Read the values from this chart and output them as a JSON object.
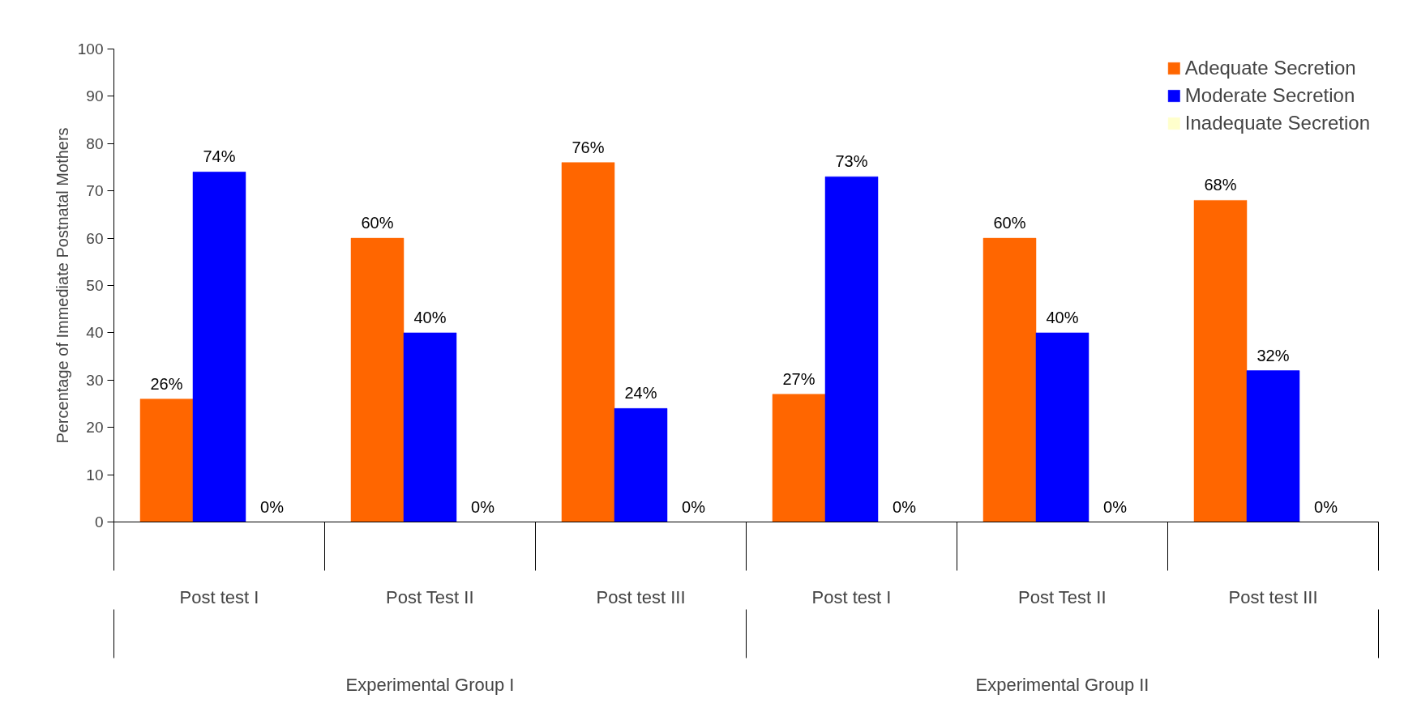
{
  "chart_data": {
    "type": "bar",
    "ylabel": "Percentage of Immediate Postnatal Mothers",
    "categories": [
      "Post test I",
      "Post Test II",
      "Post test III",
      "Post test I",
      "Post Test II",
      "Post test III"
    ],
    "annotations": [
      "Experimental Group I",
      "Experimental Group II"
    ],
    "series": [
      {
        "name": "Adequate Secretion",
        "color": "#ff6600",
        "values": [
          26,
          60,
          76,
          27,
          60,
          68
        ],
        "value_labels": [
          "26%",
          "60%",
          "76%",
          "27%",
          "60%",
          "68%"
        ]
      },
      {
        "name": "Moderate Secretion",
        "color": "#0000ff",
        "values": [
          74,
          40,
          24,
          73,
          40,
          32
        ],
        "value_labels": [
          "74%",
          "40%",
          "24%",
          "73%",
          "40%",
          "32%"
        ]
      },
      {
        "name": "Inadequate Secretion",
        "color": "#ffffcc",
        "values": [
          0,
          0,
          0,
          0,
          0,
          0
        ],
        "value_labels": [
          "0%",
          "0%",
          "0%",
          "0%",
          "0%",
          "0%"
        ]
      }
    ],
    "ylim": [
      0,
      100
    ],
    "yticks": [
      0,
      10,
      20,
      30,
      40,
      50,
      60,
      70,
      80,
      90,
      100
    ],
    "grid": false,
    "legend": "top right"
  }
}
